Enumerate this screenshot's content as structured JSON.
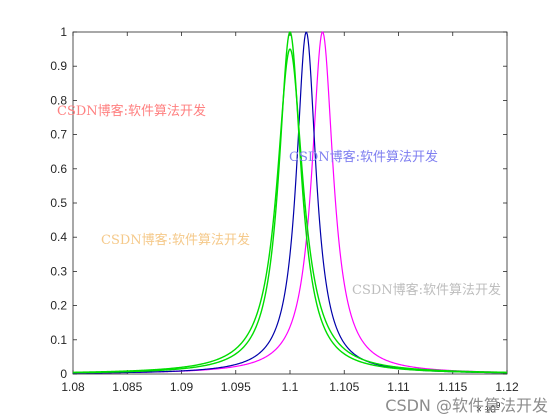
{
  "chart_data": {
    "type": "line",
    "title": "",
    "xlabel": "",
    "ylabel": "",
    "xlim": [
      1.08,
      1.12
    ],
    "ylim": [
      0,
      1
    ],
    "x_scale_exponent": "10^9",
    "x_scale_label": "× 10",
    "x_scale_power": "9",
    "x_ticks": [
      "1.08",
      "1.085",
      "1.09",
      "1.095",
      "1.1",
      "1.105",
      "1.11",
      "1.115",
      "1.12"
    ],
    "y_ticks": [
      "0",
      "0.1",
      "0.2",
      "0.3",
      "0.4",
      "0.5",
      "0.6",
      "0.7",
      "0.8",
      "0.9",
      "1"
    ],
    "grid": false,
    "series": [
      {
        "color": "#ff00ff",
        "center": 1.103,
        "halfwidth": 0.0012,
        "peak": 1.0,
        "line_width": 1.2
      },
      {
        "color": "#0000aa",
        "center": 1.1015,
        "halfwidth": 0.0011,
        "peak": 1.0,
        "line_width": 1.2
      },
      {
        "color": "#00dd00",
        "center": 1.1,
        "halfwidth": 0.00125,
        "peak": 1.0,
        "line_width": 1.4
      },
      {
        "color": "#00dd00",
        "center": 1.1,
        "halfwidth": 0.00145,
        "peak": 0.95,
        "line_width": 1.4
      }
    ]
  },
  "watermarks": [
    {
      "text": "CSDN博客:软件算法开发",
      "color": "#ff8080"
    },
    {
      "text": "CSDN博客:软件算法开发",
      "color": "#7f7ff0"
    },
    {
      "text": "CSDN博客:软件算法开发",
      "color": "#f5c98a"
    },
    {
      "text": "CSDN博客:软件算法开发",
      "color": "#bdbdbd"
    }
  ],
  "footer_watermark": "CSDN @软件算法开发"
}
